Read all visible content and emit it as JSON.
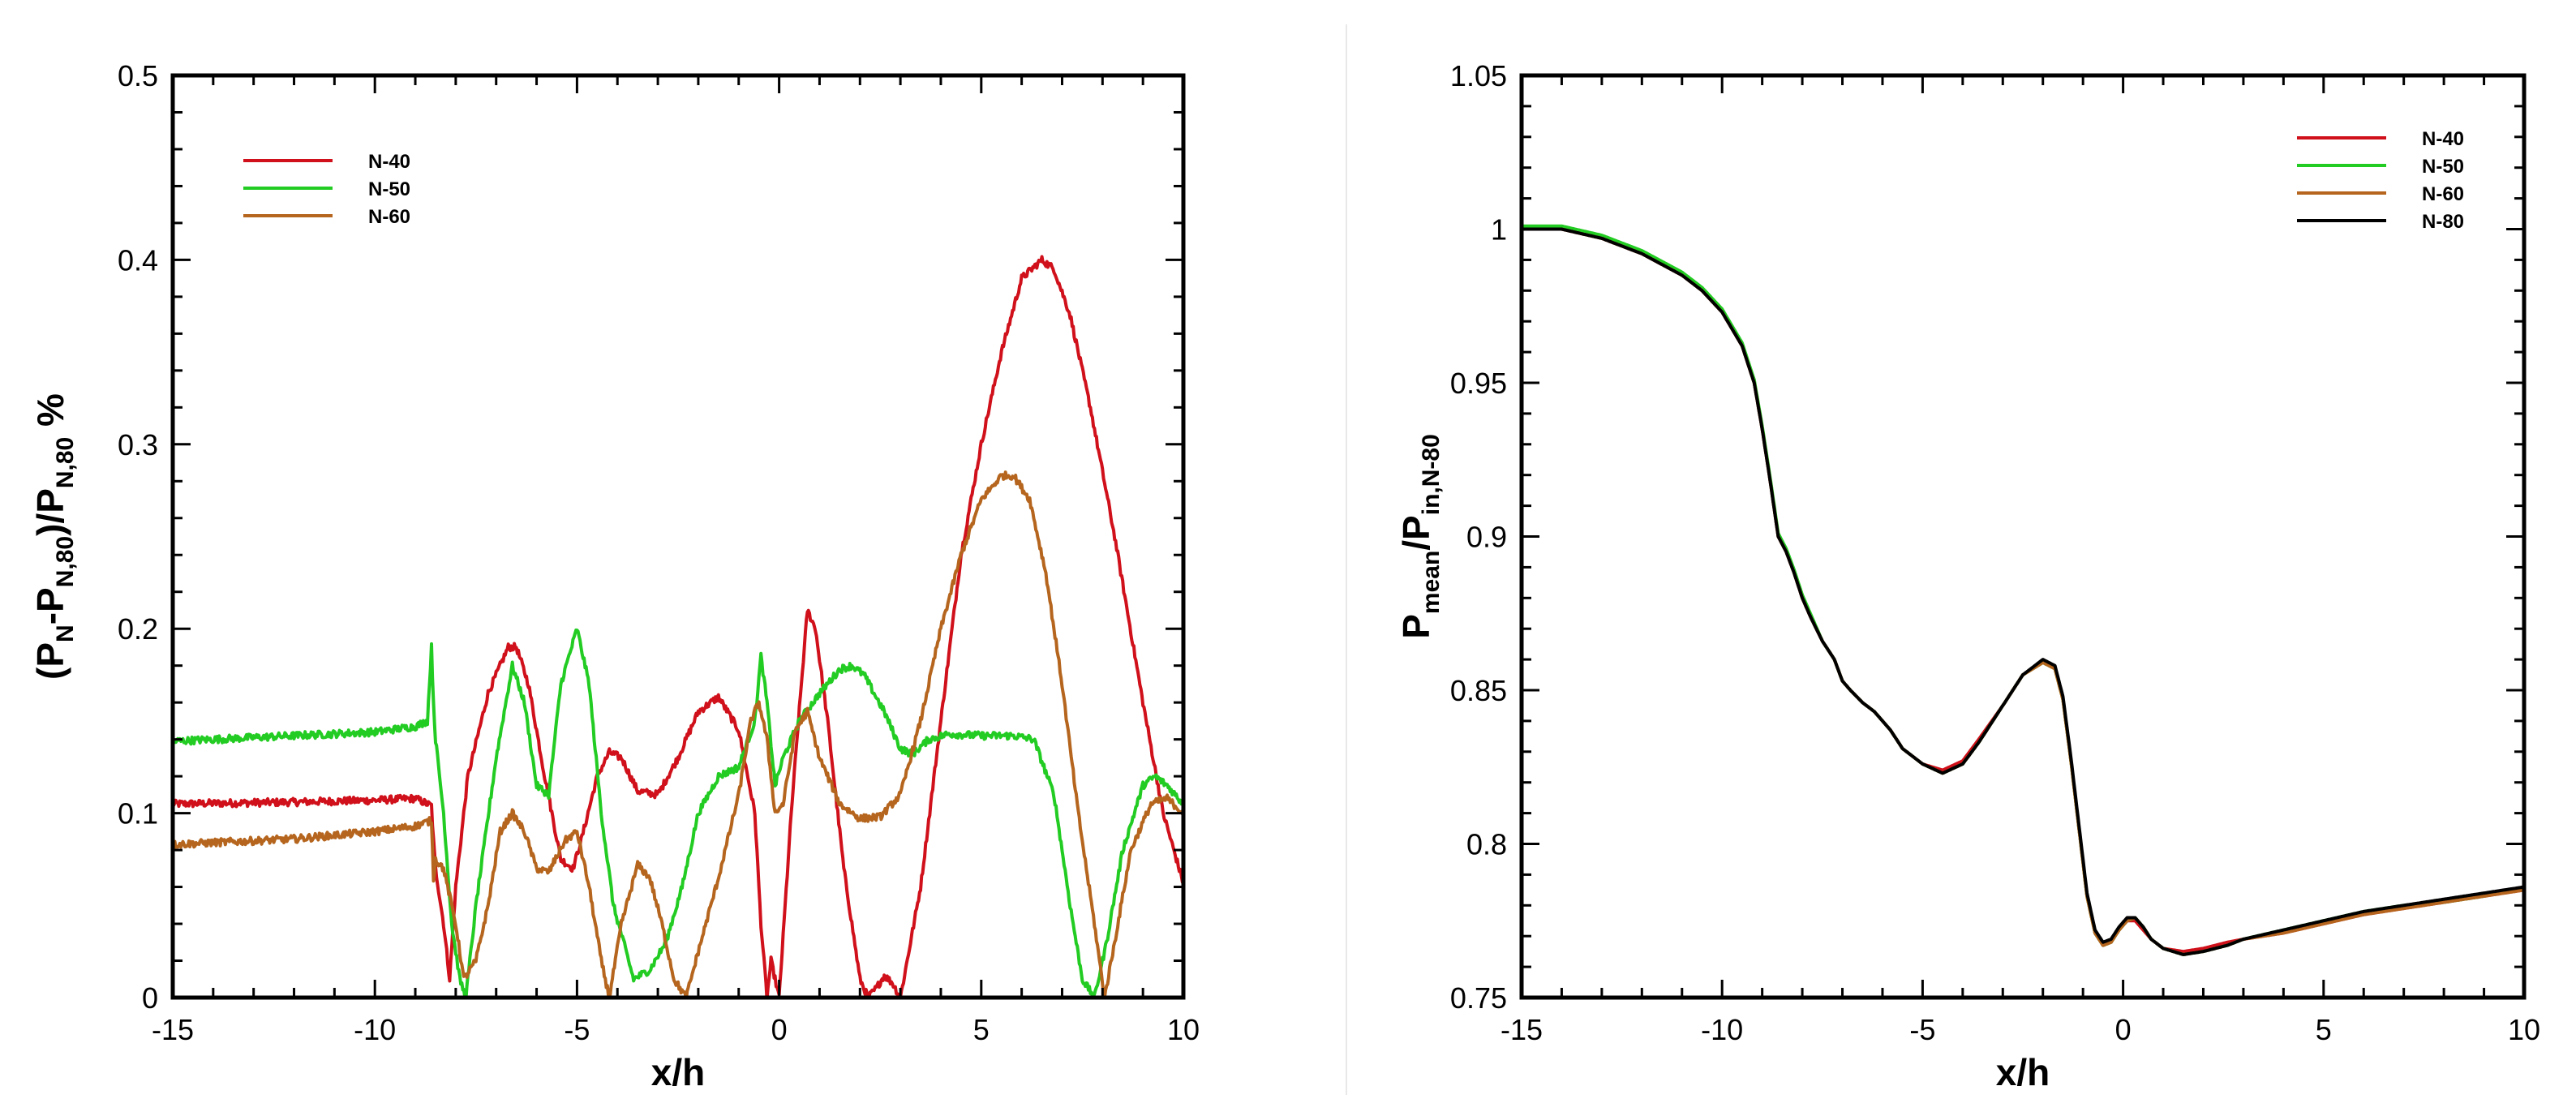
{
  "chart_data": [
    {
      "type": "line",
      "xlabel": "x/h",
      "ylabel": "(P<sub>N</sub>-P<sub>N,80</sub>)/P<sub>N,80</sub> %",
      "ylabel_parts": [
        {
          "t": "(P",
          "sub": false
        },
        {
          "t": "N",
          "sub": true
        },
        {
          "t": "-P",
          "sub": false
        },
        {
          "t": "N,80",
          "sub": true
        },
        {
          "t": ")/P",
          "sub": false
        },
        {
          "t": "N,80",
          "sub": true
        },
        {
          "t": " %",
          "sub": false
        }
      ],
      "xlim": [
        -15,
        10
      ],
      "ylim": [
        0,
        0.5
      ],
      "xticks": [
        -15,
        -10,
        -5,
        0,
        5,
        10
      ],
      "xtick_labels": [
        "-15",
        "-10",
        "-5",
        "0",
        "5",
        "10"
      ],
      "yticks": [
        0,
        0.1,
        0.2,
        0.3,
        0.4,
        0.5
      ],
      "ytick_labels": [
        "0",
        "0.1",
        "0.2",
        "0.3",
        "0.4",
        "0.5"
      ],
      "legend_position": "top-left",
      "grid": false,
      "series": [
        {
          "name": "N-40",
          "color": "#d0101a",
          "noisy": true,
          "x": [
            -15,
            -12,
            -10,
            -9,
            -8.6,
            -8.55,
            -8.5,
            -8.3,
            -8.15,
            -8.0,
            -7.7,
            -7.2,
            -6.7,
            -6.5,
            -6.2,
            -5.8,
            -5.4,
            -5.1,
            -4.9,
            -4.5,
            -4.2,
            -3.9,
            -3.5,
            -3.0,
            -2.5,
            -2.0,
            -1.5,
            -1.0,
            -0.6,
            -0.45,
            -0.3,
            -0.2,
            0,
            0.3,
            0.55,
            0.7,
            0.9,
            1.2,
            1.6,
            2.0,
            2.2,
            2.4,
            2.6,
            2.8,
            3.0,
            3.5,
            4.0,
            4.5,
            5.0,
            5.5,
            6.0,
            6.5,
            6.8,
            7.2,
            7.7,
            8.3,
            9.0,
            9.5,
            10
          ],
          "y": [
            0.105,
            0.106,
            0.107,
            0.108,
            0.104,
            0.085,
            0.07,
            0.04,
            0.01,
            0.06,
            0.12,
            0.165,
            0.19,
            0.19,
            0.17,
            0.12,
            0.075,
            0.07,
            0.085,
            0.12,
            0.133,
            0.13,
            0.112,
            0.11,
            0.13,
            0.155,
            0.163,
            0.145,
            0.1,
            0.04,
            0.0,
            0.02,
            0.0,
            0.1,
            0.17,
            0.21,
            0.2,
            0.15,
            0.07,
            0.01,
            0.0,
            0.005,
            0.012,
            0.008,
            0.0,
            0.06,
            0.15,
            0.24,
            0.3,
            0.35,
            0.39,
            0.4,
            0.395,
            0.37,
            0.32,
            0.25,
            0.16,
            0.1,
            0.062
          ]
        },
        {
          "name": "N-50",
          "color": "#22cc22",
          "noisy": true,
          "x": [
            -15,
            -12,
            -10,
            -9,
            -8.7,
            -8.6,
            -8.55,
            -8.5,
            -8.3,
            -8.1,
            -7.9,
            -7.75,
            -7.5,
            -7.0,
            -6.6,
            -6.3,
            -6.0,
            -5.7,
            -5.4,
            -5.0,
            -4.7,
            -4.4,
            -4.1,
            -3.6,
            -3.2,
            -2.8,
            -2.4,
            -2.0,
            -1.5,
            -1.0,
            -0.6,
            -0.45,
            -0.3,
            -0.1,
            0.1,
            0.5,
            1.0,
            1.5,
            1.8,
            2.1,
            2.6,
            3.0,
            3.3,
            3.7,
            4.2,
            5.0,
            5.8,
            6.3,
            6.8,
            7.2,
            7.5,
            7.8,
            8.1,
            8.5,
            9.0,
            9.3,
            9.6,
            10
          ],
          "y": [
            0.139,
            0.142,
            0.144,
            0.147,
            0.15,
            0.19,
            0.16,
            0.14,
            0.1,
            0.04,
            0.01,
            0.0,
            0.05,
            0.13,
            0.18,
            0.16,
            0.115,
            0.11,
            0.17,
            0.2,
            0.17,
            0.1,
            0.05,
            0.01,
            0.015,
            0.03,
            0.06,
            0.1,
            0.12,
            0.125,
            0.15,
            0.185,
            0.16,
            0.115,
            0.13,
            0.15,
            0.165,
            0.178,
            0.18,
            0.175,
            0.155,
            0.135,
            0.132,
            0.14,
            0.143,
            0.142,
            0.142,
            0.14,
            0.11,
            0.05,
            0.01,
            0.0,
            0.03,
            0.08,
            0.115,
            0.12,
            0.115,
            0.105
          ]
        },
        {
          "name": "N-60",
          "color": "#b5651d",
          "noisy": true,
          "x": [
            -15,
            -12,
            -10,
            -9,
            -8.6,
            -8.55,
            -8.5,
            -8.3,
            -8.0,
            -7.8,
            -7.5,
            -7.2,
            -6.9,
            -6.6,
            -6.3,
            -6.0,
            -5.7,
            -5.3,
            -5.0,
            -4.7,
            -4.4,
            -4.2,
            -3.9,
            -3.5,
            -3.2,
            -2.9,
            -2.6,
            -2.3,
            -2.0,
            -1.5,
            -1.0,
            -0.7,
            -0.5,
            -0.3,
            -0.1,
            0.1,
            0.4,
            0.7,
            1.0,
            1.5,
            2.0,
            2.5,
            3.0,
            3.5,
            4.0,
            4.5,
            5.0,
            5.5,
            5.8,
            6.2,
            6.6,
            7.0,
            7.4,
            7.8,
            8.05,
            8.3,
            8.7,
            9.2,
            9.6,
            10
          ],
          "y": [
            0.083,
            0.086,
            0.09,
            0.093,
            0.096,
            0.065,
            0.075,
            0.07,
            0.04,
            0.01,
            0.02,
            0.05,
            0.09,
            0.1,
            0.09,
            0.07,
            0.068,
            0.085,
            0.09,
            0.06,
            0.02,
            0.0,
            0.04,
            0.072,
            0.065,
            0.04,
            0.01,
            0.0,
            0.025,
            0.065,
            0.11,
            0.15,
            0.16,
            0.14,
            0.1,
            0.105,
            0.145,
            0.155,
            0.13,
            0.105,
            0.097,
            0.098,
            0.11,
            0.15,
            0.2,
            0.24,
            0.27,
            0.283,
            0.283,
            0.27,
            0.23,
            0.17,
            0.1,
            0.04,
            0.0,
            0.03,
            0.08,
            0.105,
            0.108,
            0.1
          ]
        }
      ]
    },
    {
      "type": "line",
      "xlabel": "x/h",
      "ylabel": "P<sub>mean</sub>/P<sub>in,N-80</sub>",
      "ylabel_parts": [
        {
          "t": "P",
          "sub": false
        },
        {
          "t": "mean",
          "sub": true
        },
        {
          "t": "/P",
          "sub": false
        },
        {
          "t": "in,N-80",
          "sub": true
        }
      ],
      "xlim": [
        -15,
        10
      ],
      "ylim": [
        0.75,
        1.05
      ],
      "xticks": [
        -15,
        -10,
        -5,
        0,
        5,
        10
      ],
      "xtick_labels": [
        "-15",
        "-10",
        "-5",
        "0",
        "5",
        "10"
      ],
      "yticks": [
        0.75,
        0.8,
        0.85,
        0.9,
        0.95,
        1.0,
        1.05
      ],
      "ytick_labels": [
        "0.75",
        "0.8",
        "0.85",
        "0.9",
        "0.95",
        "1",
        "1.05"
      ],
      "legend_position": "top-right",
      "grid": false,
      "series": [
        {
          "name": "N-40",
          "color": "#d0101a",
          "x": [
            -15,
            -14,
            -13,
            -12,
            -11,
            -10.5,
            -10,
            -9.5,
            -9.2,
            -9.0,
            -8.8,
            -8.6,
            -8.4,
            -8.2,
            -8.0,
            -7.8,
            -7.5,
            -7.2,
            -7.0,
            -6.8,
            -6.5,
            -6.2,
            -6.0,
            -5.8,
            -5.5,
            -5.0,
            -4.5,
            -4.0,
            -3.6,
            -3.0,
            -2.5,
            -2.0,
            -1.7,
            -1.5,
            -1.3,
            -1.1,
            -0.9,
            -0.7,
            -0.5,
            -0.3,
            -0.1,
            0.1,
            0.3,
            0.5,
            0.7,
            1.0,
            1.5,
            2.0,
            2.6,
            3.0,
            4.0,
            5.0,
            6.0,
            7.0,
            8.0,
            9.0,
            10.0
          ],
          "y": [
            1.0,
            1.0,
            0.997,
            0.992,
            0.985,
            0.98,
            0.973,
            0.962,
            0.95,
            0.935,
            0.918,
            0.9,
            0.895,
            0.888,
            0.88,
            0.874,
            0.866,
            0.86,
            0.853,
            0.85,
            0.846,
            0.843,
            0.84,
            0.837,
            0.831,
            0.826,
            0.824,
            0.827,
            0.834,
            0.845,
            0.855,
            0.859,
            0.857,
            0.847,
            0.827,
            0.805,
            0.783,
            0.771,
            0.767,
            0.768,
            0.772,
            0.775,
            0.775,
            0.772,
            0.769,
            0.766,
            0.765,
            0.766,
            0.768,
            0.769,
            0.771,
            0.774,
            0.777,
            0.779,
            0.781,
            0.783,
            0.785
          ]
        },
        {
          "name": "N-50",
          "color": "#22cc22",
          "x": [
            -15,
            -14,
            -13,
            -12,
            -11,
            -10.5,
            -10,
            -9.5,
            -9.2,
            -9.0,
            -8.8,
            -8.6,
            -8.4,
            -8.2,
            -8.0,
            -7.8,
            -7.5,
            -7.2,
            -7.0,
            -6.8,
            -6.5,
            -6.2,
            -6.0,
            -5.8,
            -5.5,
            -5.0,
            -4.5,
            -4.0,
            -3.6,
            -3.0,
            -2.5,
            -2.0,
            -1.7,
            -1.5,
            -1.3,
            -1.1,
            -0.9,
            -0.7,
            -0.5,
            -0.3,
            -0.1,
            0.1,
            0.3,
            0.5,
            0.7,
            1.0,
            1.5,
            2.0,
            2.6,
            3.0,
            4.0,
            5.0,
            6.0,
            7.0,
            8.0,
            9.0,
            10.0
          ],
          "y": [
            1.001,
            1.001,
            0.998,
            0.993,
            0.986,
            0.981,
            0.974,
            0.963,
            0.951,
            0.936,
            0.919,
            0.901,
            0.896,
            0.889,
            0.881,
            0.875,
            0.866,
            0.86,
            0.853,
            0.85,
            0.846,
            0.843,
            0.84,
            0.837,
            0.831,
            0.826,
            0.823,
            0.826,
            0.833,
            0.845,
            0.855,
            0.859,
            0.857,
            0.847,
            0.827,
            0.805,
            0.783,
            0.771,
            0.767,
            0.768,
            0.772,
            0.775,
            0.776,
            0.773,
            0.769,
            0.766,
            0.764,
            0.765,
            0.767,
            0.769,
            0.772,
            0.775,
            0.778,
            0.78,
            0.781,
            0.783,
            0.786
          ]
        },
        {
          "name": "N-60",
          "color": "#b5651d",
          "x": [
            -15,
            -14,
            -13,
            -12,
            -11,
            -10.5,
            -10,
            -9.5,
            -9.2,
            -9.0,
            -8.8,
            -8.6,
            -8.4,
            -8.2,
            -8.0,
            -7.8,
            -7.5,
            -7.2,
            -7.0,
            -6.8,
            -6.5,
            -6.2,
            -6.0,
            -5.8,
            -5.5,
            -5.0,
            -4.5,
            -4.0,
            -3.6,
            -3.0,
            -2.5,
            -2.0,
            -1.7,
            -1.5,
            -1.3,
            -1.1,
            -0.9,
            -0.7,
            -0.5,
            -0.3,
            -0.1,
            0.1,
            0.3,
            0.5,
            0.7,
            1.0,
            1.5,
            2.0,
            2.6,
            3.0,
            4.0,
            5.0,
            6.0,
            7.0,
            8.0,
            9.0,
            10.0
          ],
          "y": [
            1.0,
            1.0,
            0.997,
            0.992,
            0.985,
            0.98,
            0.973,
            0.962,
            0.95,
            0.935,
            0.918,
            0.9,
            0.895,
            0.888,
            0.88,
            0.874,
            0.866,
            0.86,
            0.853,
            0.85,
            0.846,
            0.843,
            0.84,
            0.837,
            0.831,
            0.826,
            0.823,
            0.826,
            0.833,
            0.845,
            0.855,
            0.859,
            0.857,
            0.847,
            0.827,
            0.805,
            0.783,
            0.771,
            0.767,
            0.768,
            0.772,
            0.775,
            0.776,
            0.773,
            0.769,
            0.766,
            0.764,
            0.765,
            0.767,
            0.769,
            0.771,
            0.774,
            0.777,
            0.779,
            0.781,
            0.783,
            0.785
          ]
        },
        {
          "name": "N-80",
          "color": "#000000",
          "x": [
            -15,
            -14,
            -13,
            -12,
            -11,
            -10.5,
            -10,
            -9.5,
            -9.2,
            -9.0,
            -8.8,
            -8.6,
            -8.4,
            -8.2,
            -8.0,
            -7.8,
            -7.5,
            -7.2,
            -7.0,
            -6.8,
            -6.5,
            -6.2,
            -6.0,
            -5.8,
            -5.5,
            -5.0,
            -4.5,
            -4.0,
            -3.6,
            -3.0,
            -2.5,
            -2.0,
            -1.7,
            -1.5,
            -1.3,
            -1.1,
            -0.9,
            -0.7,
            -0.5,
            -0.3,
            -0.1,
            0.1,
            0.3,
            0.5,
            0.7,
            1.0,
            1.5,
            2.0,
            2.6,
            3.0,
            4.0,
            5.0,
            6.0,
            7.0,
            8.0,
            9.0,
            10.0
          ],
          "y": [
            1.0,
            1.0,
            0.997,
            0.992,
            0.985,
            0.98,
            0.973,
            0.962,
            0.95,
            0.935,
            0.918,
            0.9,
            0.895,
            0.888,
            0.88,
            0.874,
            0.866,
            0.86,
            0.853,
            0.85,
            0.846,
            0.843,
            0.84,
            0.837,
            0.831,
            0.826,
            0.823,
            0.826,
            0.833,
            0.845,
            0.855,
            0.86,
            0.858,
            0.848,
            0.828,
            0.806,
            0.784,
            0.772,
            0.768,
            0.769,
            0.773,
            0.776,
            0.776,
            0.773,
            0.769,
            0.766,
            0.764,
            0.765,
            0.767,
            0.769,
            0.772,
            0.775,
            0.778,
            0.78,
            0.782,
            0.784,
            0.786
          ]
        }
      ]
    }
  ]
}
